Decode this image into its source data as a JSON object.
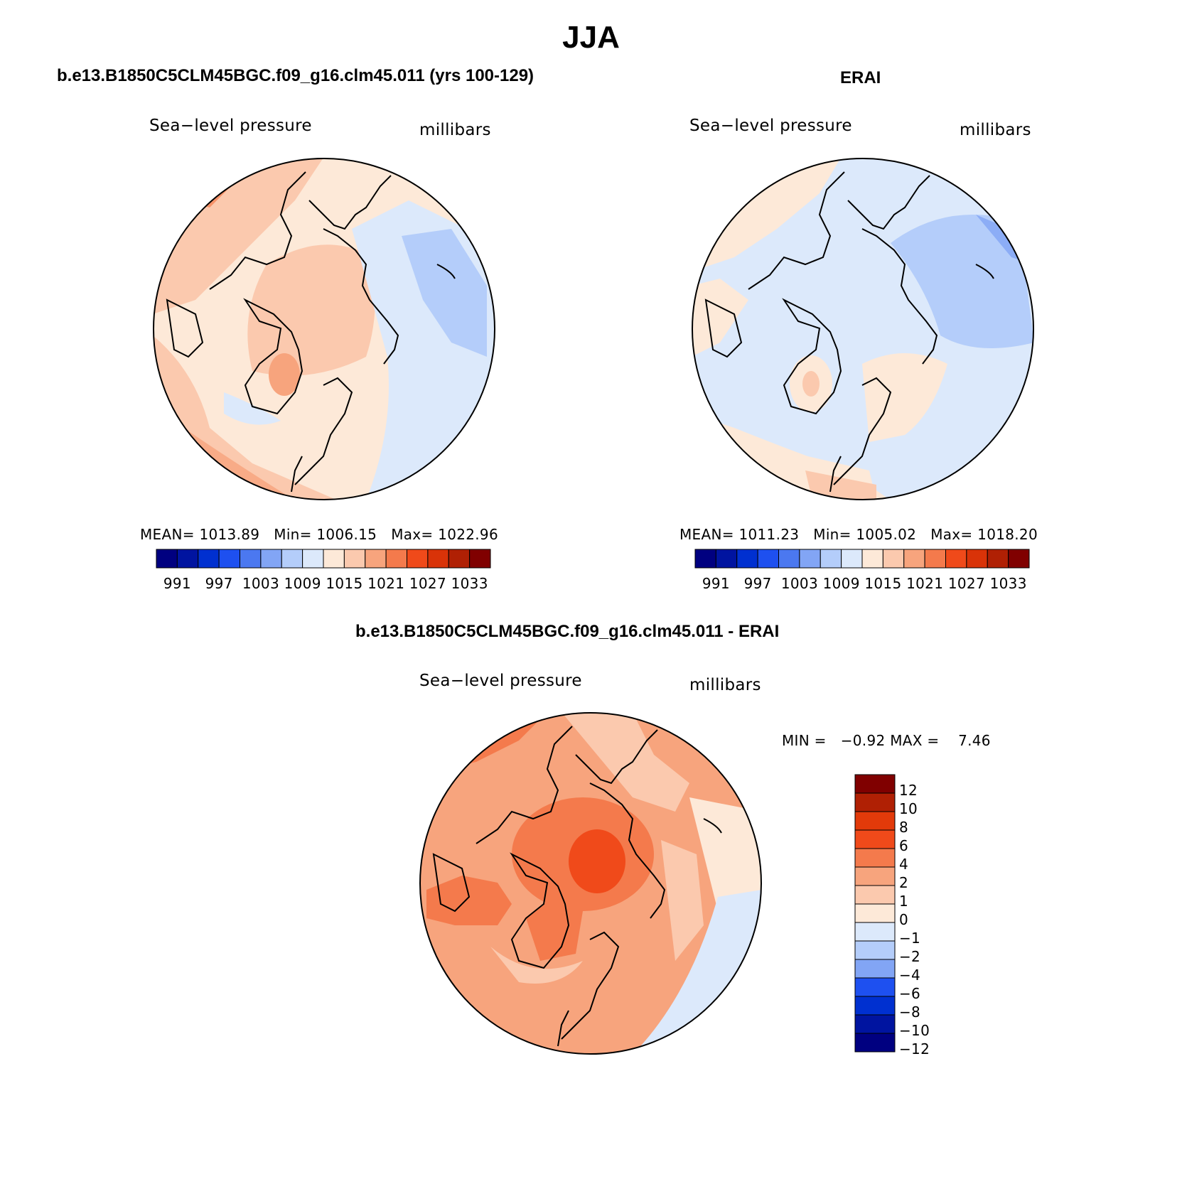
{
  "figure": {
    "season": "JJA",
    "panels": [
      {
        "title": "b.e13.B1850C5CLM45BGC.f09_g16.clm45.011 (yrs 100-129)",
        "variable": "Sea−level pressure",
        "units": "millibars",
        "stats": {
          "mean": "1013.89",
          "min": "1006.15",
          "max": "1022.96"
        }
      },
      {
        "title": "ERAI",
        "variable": "Sea−level pressure",
        "units": "millibars",
        "stats": {
          "mean": "1011.23",
          "min": "1005.02",
          "max": "1018.20"
        }
      },
      {
        "title": "b.e13.B1850C5CLM45BGC.f09_g16.clm45.011 - ERAI",
        "variable": "Sea−level pressure",
        "units": "millibars",
        "stats": {
          "min": "−0.92",
          "max": "7.46"
        }
      }
    ],
    "labels": {
      "mean_label": "MEAN=",
      "min_label": "Min=",
      "max_label": "Max=",
      "MIN_label": "MIN =",
      "MAX_label": "MAX ="
    },
    "colorbar_abs": {
      "colors": [
        "#000080",
        "#0014a0",
        "#0030d0",
        "#1e50f0",
        "#4b78f0",
        "#82a5f5",
        "#b4cdfa",
        "#dce9fb",
        "#fde9d8",
        "#fbc9ae",
        "#f7a47d",
        "#f47a4c",
        "#f04a1a",
        "#d93308",
        "#b02004",
        "#800000"
      ],
      "tick_labels": [
        "991",
        "997",
        "1003",
        "1009",
        "1015",
        "1021",
        "1027",
        "1033"
      ]
    },
    "colorbar_diff": {
      "colors": [
        "#000080",
        "#0014a0",
        "#0030d0",
        "#1e50f0",
        "#82a5f5",
        "#b4cdfa",
        "#dce9fb",
        "#fde9d8",
        "#fbc9ae",
        "#f7a47d",
        "#f47a4c",
        "#f04a1a",
        "#e23a0a",
        "#b02004",
        "#800000"
      ],
      "tick_labels": [
        "12",
        "10",
        "8",
        "6",
        "4",
        "2",
        "1",
        "0",
        "−1",
        "−2",
        "−4",
        "−6",
        "−8",
        "−10",
        "−12"
      ]
    },
    "map_colors": {
      "land_outline": "#000000",
      "model_base": "#fde9d8",
      "erai_base": "#dce9fb",
      "diff_base": "#f7a47d"
    }
  }
}
